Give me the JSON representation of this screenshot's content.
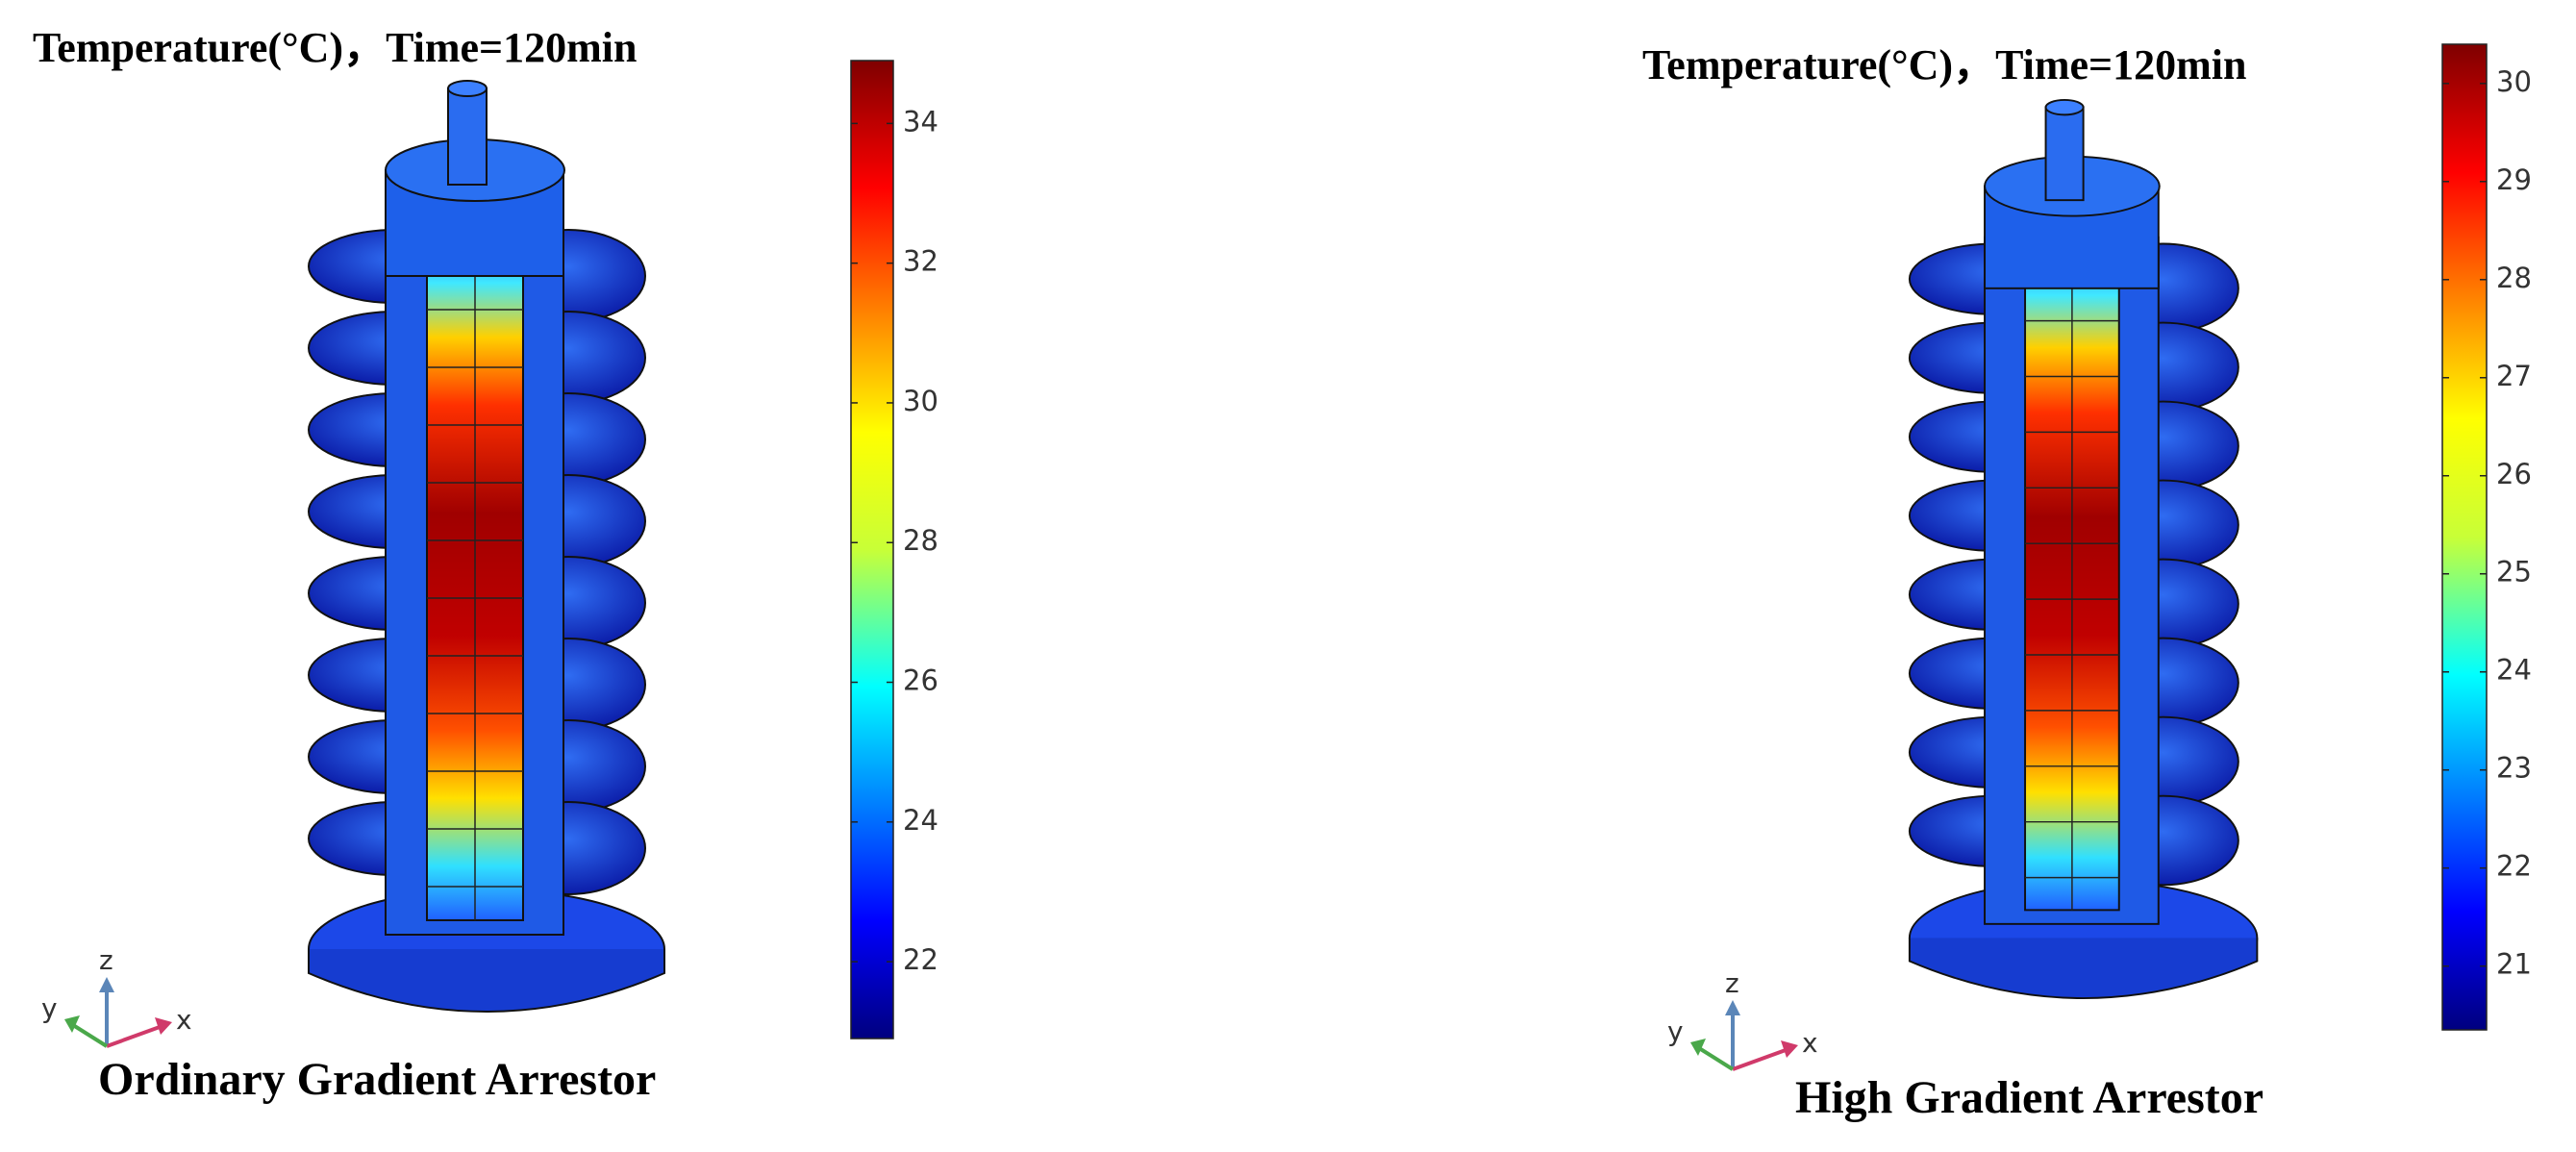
{
  "panels": [
    {
      "title": "Temperature(°C)，Time=120min",
      "caption": "Ordinary Gradient Arrestor",
      "colorbar": {
        "range": [
          20.9,
          34.9
        ],
        "ticks": [
          22,
          24,
          26,
          28,
          30,
          32,
          34
        ]
      },
      "axes": {
        "x": "x",
        "y": "y",
        "z": "z"
      }
    },
    {
      "title": "Temperature(°C)，Time=120min",
      "caption": "High Gradient Arrestor",
      "colorbar": {
        "range": [
          20.35,
          30.4
        ],
        "ticks": [
          21,
          22,
          23,
          24,
          25,
          26,
          27,
          28,
          29,
          30
        ]
      },
      "axes": {
        "x": "x",
        "y": "y",
        "z": "z"
      }
    }
  ]
}
